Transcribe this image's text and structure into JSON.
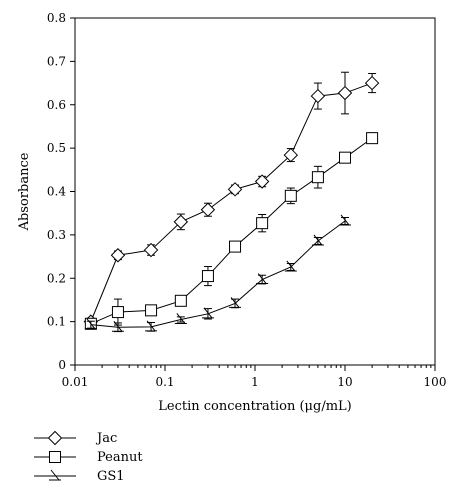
{
  "chart_data": {
    "type": "line",
    "title": "",
    "xlabel": "Lectin concentration (μg/mL)",
    "ylabel": "Absorbance",
    "xscale": "log",
    "xlim": [
      0.01,
      100
    ],
    "ylim": [
      0,
      0.8
    ],
    "x_ticks": [
      0.01,
      0.1,
      1,
      10,
      100
    ],
    "x_tick_labels": [
      "0.01",
      "0.1",
      "1",
      "10",
      "100"
    ],
    "y_ticks": [
      0,
      0.1,
      0.2,
      0.3,
      0.4,
      0.5,
      0.6,
      0.7,
      0.8
    ],
    "y_tick_labels": [
      "0",
      "0.1",
      "0.2",
      "0.3",
      "0.4",
      "0.5",
      "0.6",
      "0.7",
      "0.8"
    ],
    "grid": false,
    "legend_position": "bottom-left",
    "series": [
      {
        "name": "Jac",
        "marker": "diamond",
        "x": [
          0.015,
          0.03,
          0.07,
          0.15,
          0.3,
          0.6,
          1.2,
          2.5,
          5,
          10,
          20
        ],
        "y": [
          0.1,
          0.253,
          0.265,
          0.33,
          0.358,
          0.405,
          0.423,
          0.484,
          0.62,
          0.627,
          0.65
        ],
        "err": [
          0.008,
          0.01,
          0.012,
          0.018,
          0.015,
          0.01,
          0.012,
          0.015,
          0.03,
          0.048,
          0.022
        ]
      },
      {
        "name": "Peanut",
        "marker": "square",
        "x": [
          0.015,
          0.03,
          0.07,
          0.15,
          0.3,
          0.6,
          1.2,
          2.5,
          5,
          10,
          20
        ],
        "y": [
          0.095,
          0.122,
          0.126,
          0.148,
          0.205,
          0.273,
          0.327,
          0.39,
          0.433,
          0.478,
          0.523
        ],
        "err": [
          0.012,
          0.03,
          0.01,
          0.008,
          0.022,
          0.01,
          0.02,
          0.018,
          0.025,
          0.01,
          0.012
        ]
      },
      {
        "name": "GS1",
        "marker": "triangle",
        "x": [
          0.015,
          0.03,
          0.07,
          0.15,
          0.3,
          0.6,
          1.2,
          2.5,
          5,
          10
        ],
        "y": [
          0.093,
          0.087,
          0.088,
          0.105,
          0.118,
          0.142,
          0.197,
          0.226,
          0.286,
          0.332
        ],
        "err": [
          0.008,
          0.01,
          0.01,
          0.006,
          0.012,
          0.01,
          0.01,
          0.008,
          0.008,
          0.008
        ]
      }
    ]
  }
}
